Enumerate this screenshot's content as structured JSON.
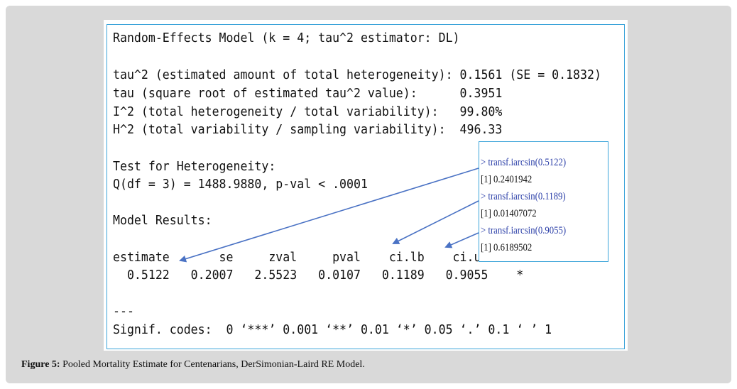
{
  "model_output": {
    "lines": [
      "Random-Effects Model (k = 4; tau^2 estimator: DL)",
      "tau^2 (estimated amount of total heterogeneity): 0.1561 (SE = 0.1832)",
      "tau (square root of estimated tau^2 value):      0.3951",
      "I^2 (total heterogeneity / total variability):   99.80%",
      "H^2 (total variability / sampling variability):  496.33",
      "Test for Heterogeneity:",
      "Q(df = 3) = 1488.9880, p-val < .0001",
      "Model Results:",
      "estimate       se     zval     pval    ci.lb    ci.ub",
      "  0.5122   0.2007   2.5523   0.0107   0.1189   0.9055    *",
      "---",
      "Signif. codes:  0 ‘***’ 0.001 ‘**’ 0.01 ‘*’ 0.05 ‘.’ 0.1 ‘ ’ 1"
    ]
  },
  "console": {
    "cmd1": "> transf.iarcsin(0.5122)",
    "res1": "[1] 0.2401942",
    "cmd2": "> transf.iarcsin(0.1189)",
    "res2": "[1] 0.01407072",
    "cmd3": "> transf.iarcsin(0.9055)",
    "res3": "[1] 0.6189502"
  },
  "caption": {
    "label": "Figure 5:",
    "text": " Pooled Mortality Estimate for Centenarians, DerSimonian-Laird RE Model."
  },
  "colors": {
    "frame": "#d9d9d9",
    "box_border": "#3aa3d9",
    "arrow": "#4a72c4",
    "console_command": "#2b3fa8"
  }
}
